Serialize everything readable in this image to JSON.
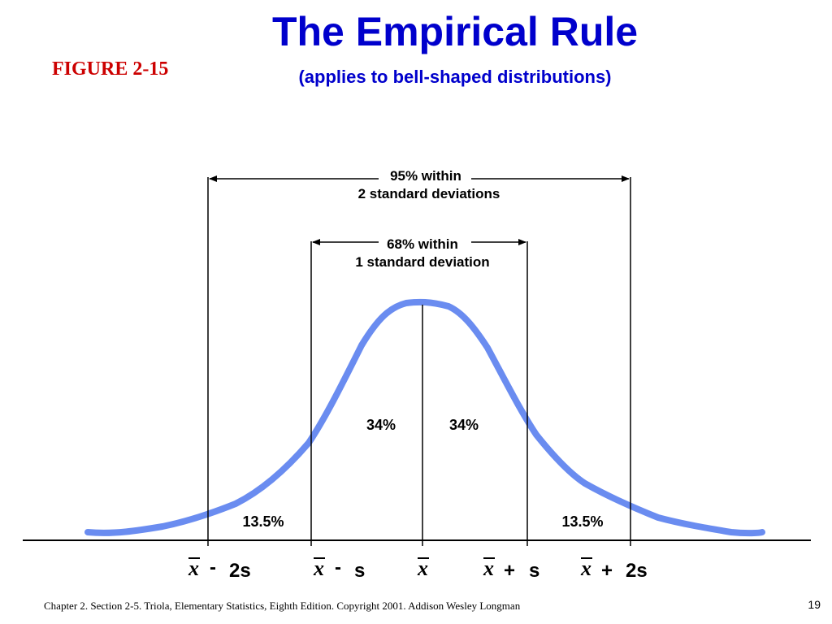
{
  "slide": {
    "title": "The Empirical Rule",
    "subtitle": "(applies to bell-shaped distributions)",
    "figure_label": "FIGURE 2-15",
    "footer": "Chapter 2.  Section 2-5. Triola, Elementary Statistics, Eighth Edition. Copyright   2001.  Addison Wesley Longman",
    "page_number": "19"
  },
  "colors": {
    "title": "#0000cc",
    "figure_label": "#cc0000",
    "curve": "#6a8cf0",
    "lines": "#000000"
  },
  "diagram": {
    "brackets": [
      {
        "line1": "95% within",
        "line2": "2 standard deviations"
      },
      {
        "line1": "68% within",
        "line2": "1 standard deviation"
      }
    ],
    "regions": {
      "left_inner": "34%",
      "right_inner": "34%",
      "left_outer": "13.5%",
      "right_outer": "13.5%"
    },
    "axis_labels": [
      {
        "symbol": "x",
        "op": "-",
        "term": "2s"
      },
      {
        "symbol": "x",
        "op": "-",
        "term": "s"
      },
      {
        "symbol": "x",
        "op": "",
        "term": ""
      },
      {
        "symbol": "x",
        "op": "+",
        "term": "s"
      },
      {
        "symbol": "x",
        "op": "+",
        "term": "2s"
      }
    ]
  }
}
